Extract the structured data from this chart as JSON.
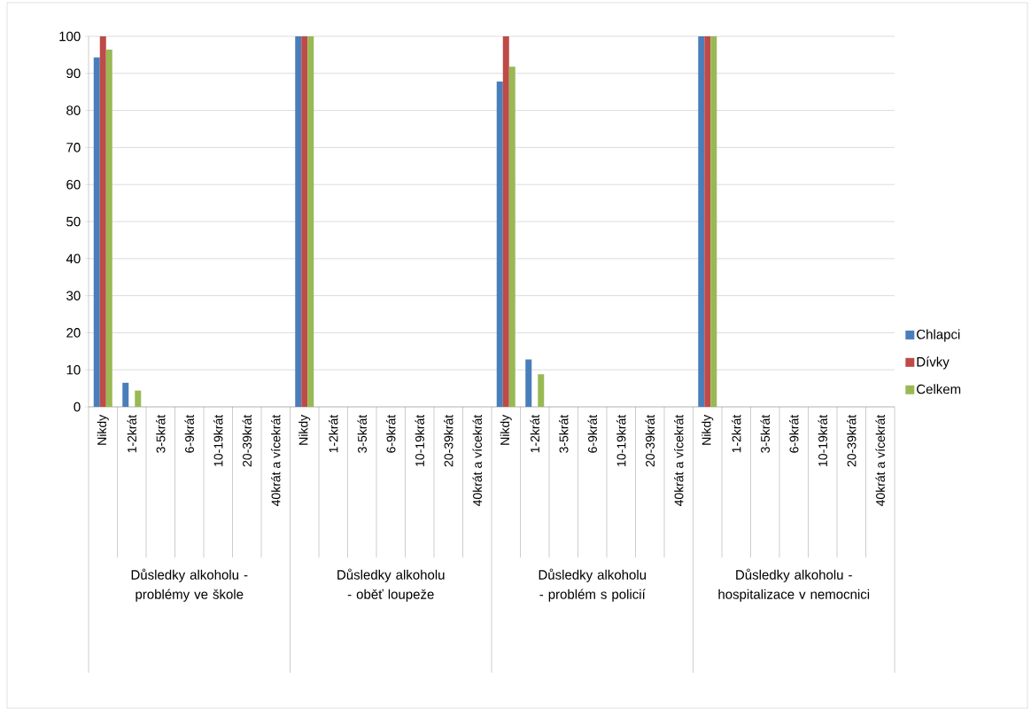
{
  "chart_data": {
    "type": "bar",
    "categories": [
      "Nikdy",
      "1-2krát",
      "3-5krát",
      "6-9krát",
      "10-19krát",
      "20-39krát",
      "40krát a vícekrát",
      "Nikdy",
      "1-2krát",
      "3-5krát",
      "6-9krát",
      "10-19krát",
      "20-39krát",
      "40krát a vícekrát",
      "Nikdy",
      "1-2krát",
      "3-5krát",
      "6-9krát",
      "10-19krát",
      "20-39krát",
      "40krát a vícekrát",
      "Nikdy",
      "1-2krát",
      "3-5krát",
      "6-9krát",
      "10-19krát",
      "20-39krát",
      "40krát a vícekrát"
    ],
    "series": [
      {
        "name": "Chlapci",
        "color": "#4a7ebb",
        "values": [
          94.3,
          6.5,
          0,
          0,
          0,
          0,
          0,
          100,
          0,
          0,
          0,
          0,
          0,
          0,
          87.8,
          12.8,
          0,
          0,
          0,
          0,
          0,
          100,
          0,
          0,
          0,
          0,
          0,
          0
        ]
      },
      {
        "name": "Dívky",
        "color": "#be4b48",
        "values": [
          100,
          0,
          0,
          0,
          0,
          0,
          0,
          100,
          0,
          0,
          0,
          0,
          0,
          0,
          100,
          0,
          0,
          0,
          0,
          0,
          0,
          100,
          0,
          0,
          0,
          0,
          0,
          0
        ]
      },
      {
        "name": "Celkem",
        "color": "#98b954",
        "values": [
          96.4,
          4.4,
          0,
          0,
          0,
          0,
          0,
          100,
          0,
          0,
          0,
          0,
          0,
          0,
          91.8,
          8.8,
          0,
          0,
          0,
          0,
          0,
          100,
          0,
          0,
          0,
          0,
          0,
          0
        ]
      }
    ],
    "annotations": [
      "Důsledky alkoholu - problémy ve škole",
      "Důsledky alkoholu - oběť loupeže",
      "Důsledky alkoholu - problém s policií",
      "Důsledky alkoholu - hospitalizace v nemocnici"
    ],
    "ylim": [
      0,
      100
    ],
    "yticks": [
      0,
      10,
      20,
      30,
      40,
      50,
      60,
      70,
      80,
      90,
      100
    ],
    "grid": "y",
    "legend": "right"
  }
}
